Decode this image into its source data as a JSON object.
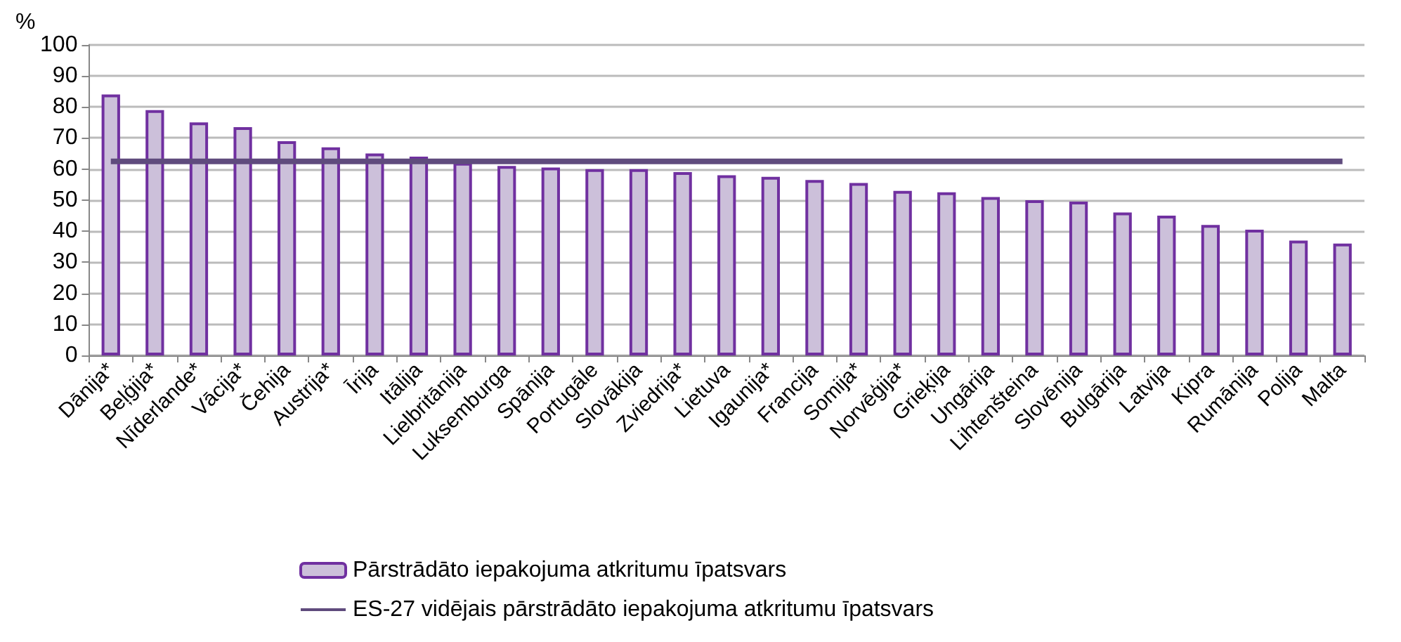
{
  "chart_data": {
    "type": "bar",
    "ylabel": "%",
    "categories": [
      "Dānija*",
      "Beļģija*",
      "Nīderlande*",
      "Vācija*",
      "Čehija",
      "Austrija*",
      "Īrija",
      "Itālija",
      "Lielbritānija",
      "Luksemburga",
      "Spānija",
      "Portugāle",
      "Slovākija",
      "Zviedrija*",
      "Lietuva",
      "Igaunija*",
      "Francija",
      "Somija*",
      "Norvēģija*",
      "Grieķija",
      "Ungārija",
      "Lihtenšteina",
      "Slovēnija",
      "Bulgārija",
      "Latvija",
      "Kipra",
      "Rumānija",
      "Polija",
      "Malta"
    ],
    "series": [
      {
        "name": "Pārstrādāto iepakojuma atkritumu īpatsvars",
        "color": "#ccc0da",
        "values": [
          84,
          79,
          75,
          73.5,
          69,
          67,
          65,
          64,
          62,
          61,
          60.5,
          60,
          60,
          59,
          58,
          57.5,
          56.5,
          55.5,
          53,
          52.5,
          51,
          50,
          49.5,
          46,
          45,
          42,
          40.5,
          37,
          36
        ]
      },
      {
        "name": "ES-27 vidējais pārstrādāto iepakojuma atkritumu īpatsvars",
        "type": "line",
        "color": "#5f4b7d",
        "values": [
          62.5,
          62.5,
          62.5,
          62.5,
          62.5,
          62.5,
          62.5,
          62.5,
          62.5,
          62.5,
          62.5,
          62.5,
          62.5,
          62.5,
          62.5,
          62.5,
          62.5,
          62.5,
          62.5,
          62.5,
          62.5,
          62.5,
          62.5,
          62.5,
          62.5,
          62.5,
          62.5,
          62.5,
          62.5
        ]
      }
    ],
    "ylim": [
      0,
      100
    ],
    "yticks": [
      0,
      10,
      20,
      30,
      40,
      50,
      60,
      70,
      80,
      90,
      100
    ],
    "grid": "y",
    "legend": "bottom",
    "marker": "none"
  }
}
